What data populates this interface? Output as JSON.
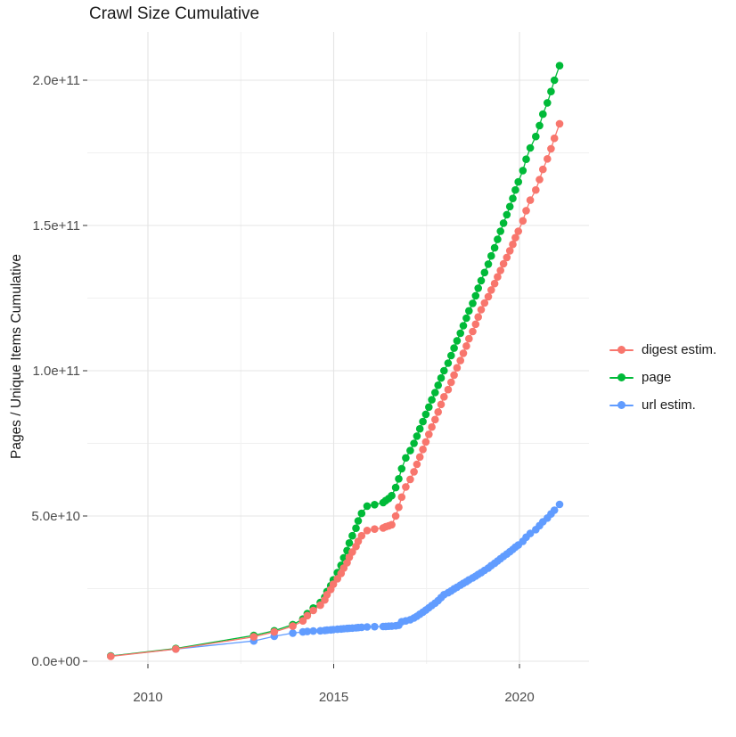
{
  "chart_data": {
    "type": "line",
    "title": "Crawl Size Cumulative",
    "xlabel": "",
    "ylabel": "Pages / Unique Items Cumulative",
    "legend_position": "right",
    "grid": true,
    "values_unit": "1e9 (billions, cumulative count)",
    "xlim": [
      2008.45,
      2021.86
    ],
    "ylim": [
      0,
      215
    ],
    "x_ticks": [
      {
        "value": 2010,
        "label": "2010"
      },
      {
        "value": 2015,
        "label": "2015"
      },
      {
        "value": 2020,
        "label": "2020"
      }
    ],
    "x_minor_ticks": [
      2012.5,
      2017.5
    ],
    "y_ticks": [
      {
        "value": 0,
        "label": "0.0e+00"
      },
      {
        "value": 50,
        "label": "5.0e+10"
      },
      {
        "value": 100,
        "label": "1.0e+11"
      },
      {
        "value": 150,
        "label": "1.5e+11"
      },
      {
        "value": 200,
        "label": "2.0e+11"
      }
    ],
    "y_minor_ticks": [
      25,
      75,
      125,
      175
    ],
    "x": [
      2009.0,
      2010.75,
      2012.85,
      2013.4,
      2013.9,
      2014.17,
      2014.29,
      2014.45,
      2014.64,
      2014.76,
      2014.82,
      2014.92,
      2014.99,
      2015.1,
      2015.2,
      2015.27,
      2015.36,
      2015.42,
      2015.5,
      2015.6,
      2015.66,
      2015.75,
      2015.9,
      2016.1,
      2016.33,
      2016.4,
      2016.48,
      2016.56,
      2016.67,
      2016.75,
      2016.83,
      2016.94,
      2017.06,
      2017.16,
      2017.24,
      2017.32,
      2017.4,
      2017.48,
      2017.56,
      2017.64,
      2017.73,
      2017.81,
      2017.89,
      2017.97,
      2018.08,
      2018.16,
      2018.24,
      2018.32,
      2018.41,
      2018.49,
      2018.57,
      2018.64,
      2018.74,
      2018.82,
      2018.89,
      2018.97,
      2019.06,
      2019.16,
      2019.24,
      2019.33,
      2019.41,
      2019.49,
      2019.57,
      2019.66,
      2019.74,
      2019.82,
      2019.89,
      2019.97,
      2020.09,
      2020.18,
      2020.29,
      2020.44,
      2020.54,
      2020.63,
      2020.75,
      2020.85,
      2020.94,
      2021.08
    ],
    "series": [
      {
        "id": "digest",
        "name": "digest estim.",
        "color": "#F8766D",
        "values": [
          1.7,
          4.2,
          8.4,
          10.1,
          12.1,
          13.9,
          15.7,
          17.5,
          19.3,
          21.1,
          22.9,
          24.7,
          26.5,
          28.4,
          30.2,
          32.1,
          33.9,
          35.8,
          37.6,
          39.5,
          41.3,
          43.2,
          45.0,
          45.5,
          45.9,
          46.3,
          46.6,
          47.0,
          50.0,
          53.0,
          56.5,
          60.0,
          62.6,
          65.2,
          67.8,
          70.3,
          72.9,
          75.5,
          78.1,
          80.6,
          83.2,
          85.8,
          88.4,
          91.0,
          93.5,
          96.0,
          98.5,
          101.0,
          103.5,
          106.0,
          108.5,
          111.0,
          113.5,
          116.0,
          118.5,
          121.0,
          123.3,
          125.5,
          127.8,
          130.0,
          132.3,
          134.5,
          136.8,
          139.0,
          141.3,
          143.5,
          145.8,
          148.0,
          151.6,
          155.1,
          158.7,
          162.2,
          165.8,
          169.3,
          172.9,
          176.4,
          180.0,
          185.0
        ]
      },
      {
        "id": "page",
        "name": "page",
        "color": "#00BA38",
        "values": [
          1.8,
          4.4,
          8.9,
          10.5,
          12.6,
          14.5,
          16.4,
          18.3,
          20.2,
          22.1,
          24.0,
          26.0,
          28.0,
          30.5,
          33.0,
          35.6,
          38.1,
          40.7,
          43.2,
          45.8,
          48.3,
          50.9,
          53.4,
          53.9,
          54.6,
          55.3,
          56.0,
          57.0,
          59.8,
          62.8,
          66.3,
          70.0,
          72.5,
          75.0,
          77.5,
          80.0,
          82.5,
          85.0,
          87.5,
          90.0,
          92.5,
          95.0,
          97.5,
          100.0,
          102.6,
          105.2,
          107.8,
          110.3,
          112.9,
          115.5,
          118.1,
          120.6,
          123.2,
          125.8,
          128.4,
          131.0,
          133.8,
          136.7,
          139.5,
          142.3,
          145.2,
          148.0,
          150.8,
          153.7,
          156.5,
          159.3,
          162.2,
          165.0,
          168.9,
          172.8,
          176.7,
          180.6,
          184.4,
          188.3,
          192.2,
          196.1,
          200.0,
          205.0
        ]
      },
      {
        "id": "url",
        "name": "url estim.",
        "color": "#619CFF",
        "values": [
          1.8,
          4.2,
          7.0,
          8.6,
          9.7,
          10.1,
          10.25,
          10.4,
          10.5,
          10.6,
          10.7,
          10.8,
          10.9,
          11.0,
          11.1,
          11.2,
          11.3,
          11.35,
          11.4,
          11.5,
          11.6,
          11.7,
          11.8,
          11.9,
          11.95,
          12.0,
          12.05,
          12.1,
          12.2,
          12.4,
          13.6,
          13.9,
          14.3,
          14.9,
          15.5,
          16.2,
          16.9,
          17.6,
          18.4,
          19.2,
          20.0,
          20.9,
          21.9,
          22.9,
          23.6,
          24.2,
          24.9,
          25.5,
          26.2,
          26.8,
          27.4,
          28.0,
          28.7,
          29.3,
          29.9,
          30.5,
          31.3,
          32.1,
          32.9,
          33.7,
          34.5,
          35.3,
          36.1,
          36.9,
          37.7,
          38.5,
          39.3,
          40.0,
          41.3,
          42.7,
          44.0,
          45.3,
          46.7,
          48.0,
          49.3,
          50.7,
          52.0,
          54.0
        ]
      }
    ],
    "style": {
      "grid_major_color": "#e4e4e4",
      "grid_minor_color": "#f0f0f0",
      "tick_mark_color": "#333333",
      "tick_label_color": "#4d4d4d",
      "background": "#ffffff"
    }
  }
}
